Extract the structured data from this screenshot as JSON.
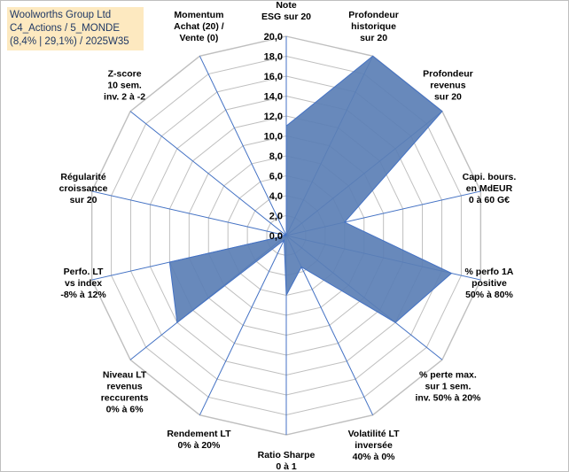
{
  "title": {
    "line1": "Woolworths Group Ltd",
    "line2": "C4_Actions / 5_MONDE",
    "line3": "(8,4% | 29,1%) / 2025W35"
  },
  "colors": {
    "fill": "#5b7fb5",
    "stroke": "#4472c4",
    "grid": "#bfbfbf",
    "spoke": "#4472c4",
    "title_bg": "#fde9c0",
    "title_text": "#1f3864"
  },
  "chart_data": {
    "type": "radar",
    "rlim": [
      0,
      20
    ],
    "tick_step": 2,
    "ticks": [
      "0,0",
      "2,0",
      "4,0",
      "6,0",
      "8,0",
      "10,0",
      "12,0",
      "14,0",
      "16,0",
      "18,0",
      "20,0"
    ],
    "grid": true,
    "categories": [
      [
        "Note",
        "ESG sur 20"
      ],
      [
        "Profondeur",
        "historique",
        "sur 20"
      ],
      [
        "Profondeur",
        "revenus",
        "sur 20"
      ],
      [
        "Capi. bours.",
        "en MdEUR",
        "0 à 60 G€"
      ],
      [
        "% perfo 1A",
        "positive",
        "50% à 80%"
      ],
      [
        "% perte max.",
        "sur 1 sem.",
        "inv. 50% à 20%"
      ],
      [
        "Volatilité LT",
        "inversée",
        "40% à 0%"
      ],
      [
        "Ratio Sharpe",
        "0 à 1"
      ],
      [
        "Rendement LT",
        "0% à 20%"
      ],
      [
        "Niveau LT",
        "revenus",
        "reccurents",
        "0% à 6%"
      ],
      [
        "Perfo. LT",
        "vs index",
        "-8% à 12%"
      ],
      [
        "Régularité",
        "croissance",
        "sur 20"
      ],
      [
        "Z-score",
        "10 sem.",
        "inv. 2 à -2"
      ],
      [
        "Momentum",
        "Achat (20) /",
        "Vente (0)"
      ]
    ],
    "values": [
      11,
      20,
      20,
      6,
      17,
      14,
      3.5,
      6,
      0.5,
      14,
      12,
      0,
      0,
      0
    ]
  }
}
